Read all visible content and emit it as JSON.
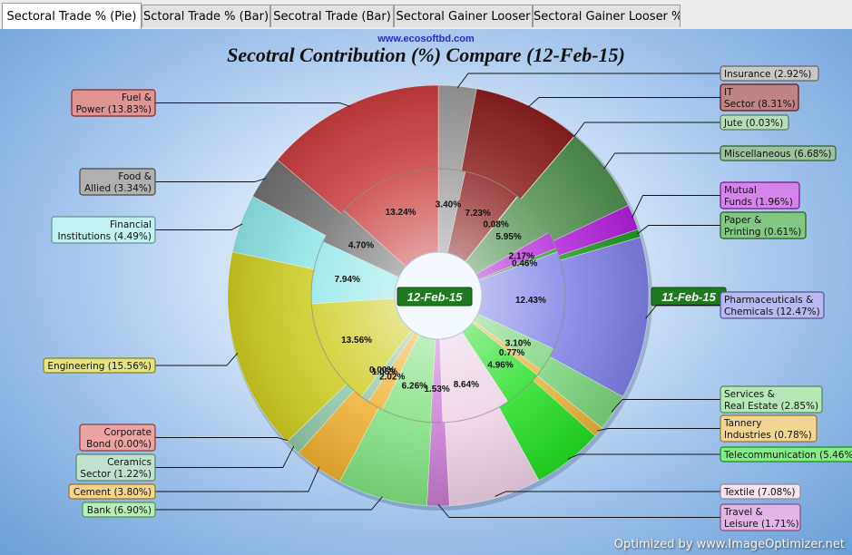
{
  "tabs": [
    {
      "label": "Sectoral Trade % (Pie)",
      "active": true
    },
    {
      "label": "Sctoral Trade % (Bar)",
      "active": false
    },
    {
      "label": "Secotral Trade (Bar)",
      "active": false
    },
    {
      "label": "Sectoral Gainer Looser",
      "active": false
    },
    {
      "label": "Sectoral Gainer Looser %",
      "active": false
    }
  ],
  "site": "www.ecosoftbd.com",
  "watermark": "Optimized by www.ImageOptimizer.net",
  "chart_data": {
    "type": "pie",
    "variant": "double-ring doughnut",
    "title": "Secotral Contribution (%) Compare (12-Feb-15)",
    "inner_ring_label": "12-Feb-15",
    "outer_ring_label": "11-Feb-15",
    "start": "top, clockwise",
    "sectors": [
      {
        "name": "Insurance",
        "outer": 2.92,
        "inner": 3.4,
        "color": "#9a9a9a"
      },
      {
        "name": "IT Sector",
        "outer": 8.31,
        "inner": 7.23,
        "color": "#8b1e1e"
      },
      {
        "name": "Jute",
        "outer": 0.03,
        "inner": 0.08,
        "color": "#7fbf7f"
      },
      {
        "name": "Miscellaneous",
        "outer": 6.68,
        "inner": 5.95,
        "color": "#4f8f4f"
      },
      {
        "name": "Mutual Funds",
        "outer": 1.96,
        "inner": 2.17,
        "color": "#b020d8"
      },
      {
        "name": "Paper & Printing",
        "outer": 0.61,
        "inner": 0.46,
        "color": "#1f9a1f"
      },
      {
        "name": "Pharmaceuticals & Chemicals",
        "outer": 12.47,
        "inner": 12.43,
        "color": "#7f7fe6"
      },
      {
        "name": "Services & Real Estate",
        "outer": 2.85,
        "inner": 3.1,
        "color": "#7ad47a"
      },
      {
        "name": "Tannery Industries",
        "outer": 0.78,
        "inner": 0.77,
        "color": "#e8b23a"
      },
      {
        "name": "Telecommunication",
        "outer": 5.46,
        "inner": 4.96,
        "color": "#22dd22"
      },
      {
        "name": "Textile",
        "outer": 7.08,
        "inner": 8.64,
        "color": "#ecd0e4"
      },
      {
        "name": "Travel & Leisure",
        "outer": 1.71,
        "inner": 1.53,
        "color": "#c878d0"
      },
      {
        "name": "Bank",
        "outer": 6.9,
        "inner": 6.26,
        "color": "#7fe07f"
      },
      {
        "name": "Cement",
        "outer": 3.8,
        "inner": 2.02,
        "color": "#f0b030"
      },
      {
        "name": "Ceramics Sector",
        "outer": 1.22,
        "inner": 1.05,
        "color": "#8fc8a8"
      },
      {
        "name": "Corporate Bond",
        "outer": 0.0,
        "inner": 0.0,
        "color": "#d85a5a"
      },
      {
        "name": "Engineering",
        "outer": 15.56,
        "inner": 13.56,
        "color": "#cccc20"
      },
      {
        "name": "Financial Institutions",
        "outer": 4.49,
        "inner": 7.94,
        "color": "#8fe6e6"
      },
      {
        "name": "Food & Allied",
        "outer": 3.34,
        "inner": 4.7,
        "color": "#707070"
      },
      {
        "name": "Fuel & Power",
        "outer": 13.83,
        "inner": 13.24,
        "color": "#c83c3c"
      }
    ],
    "inner_labels_shown": [
      "3.40%",
      "7.23%",
      "0.08%",
      "5.95%",
      "2.17%",
      "0.46%",
      "12.43%",
      "3.10%",
      "0.77%",
      "4.96%",
      "8.64%",
      "1.53%",
      "6.26%",
      "2.02%",
      "1.05%",
      "0.00%",
      "13.56%",
      "7.94%",
      "4.70%",
      "13.24%"
    ],
    "callouts": [
      {
        "name": "Insurance",
        "lines": [
          "Insurance (2.92%)"
        ]
      },
      {
        "name": "IT Sector",
        "lines": [
          "IT",
          "Sector (8.31%)"
        ]
      },
      {
        "name": "Jute",
        "lines": [
          "Jute (0.03%)"
        ]
      },
      {
        "name": "Miscellaneous",
        "lines": [
          "Miscellaneous (6.68%)"
        ]
      },
      {
        "name": "Mutual Funds",
        "lines": [
          "Mutual",
          "Funds (1.96%)"
        ]
      },
      {
        "name": "Paper & Printing",
        "lines": [
          "Paper &",
          "Printing (0.61%)"
        ]
      },
      {
        "name": "Pharmaceuticals & Chemicals",
        "lines": [
          "Pharmaceuticals &",
          "Chemicals (12.47%)"
        ]
      },
      {
        "name": "Services & Real Estate",
        "lines": [
          "Services &",
          "Real Estate (2.85%)"
        ]
      },
      {
        "name": "Tannery Industries",
        "lines": [
          "Tannery",
          "Industries (0.78%)"
        ]
      },
      {
        "name": "Telecommunication",
        "lines": [
          "Telecommunication (5.46%)"
        ]
      },
      {
        "name": "Textile",
        "lines": [
          "Textile (7.08%)"
        ]
      },
      {
        "name": "Travel & Leisure",
        "lines": [
          "Travel &",
          "Leisure (1.71%)"
        ]
      },
      {
        "name": "Bank",
        "lines": [
          "Bank (6.90%)"
        ]
      },
      {
        "name": "Cement",
        "lines": [
          "Cement (3.80%)"
        ]
      },
      {
        "name": "Ceramics Sector",
        "lines": [
          "Ceramics",
          "Sector (1.22%)"
        ]
      },
      {
        "name": "Corporate Bond",
        "lines": [
          "Corporate",
          "Bond (0.00%)"
        ]
      },
      {
        "name": "Engineering",
        "lines": [
          "Engineering (15.56%)"
        ]
      },
      {
        "name": "Financial Institutions",
        "lines": [
          "Financial",
          "Institutions (4.49%)"
        ]
      },
      {
        "name": "Food & Allied",
        "lines": [
          "Food &",
          "Allied (3.34%)"
        ]
      },
      {
        "name": "Fuel & Power",
        "lines": [
          "Fuel &",
          "Power (13.83%)"
        ]
      }
    ]
  }
}
